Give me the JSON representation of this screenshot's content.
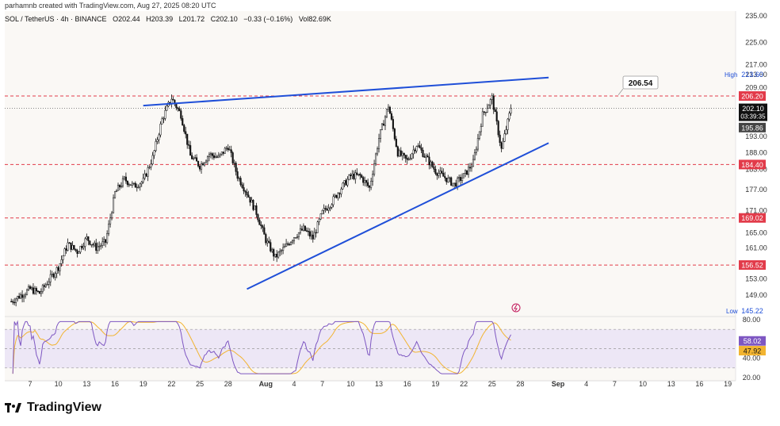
{
  "header": {
    "credit": "parhamnb created with TradingView.com, Aug 27, 2025 08:20 UTC",
    "symbol": "SOL / TetherUS · 4h · BINANCE",
    "open": "O202.44",
    "high": "H203.39",
    "low": "L201.72",
    "close": "C202.10",
    "change": "−0.33 (−0.16%)",
    "volume": "Vol82.69K"
  },
  "brand": {
    "name": "TradingView"
  },
  "colors": {
    "background": "#faf8f5",
    "candle": "#111111",
    "trendline": "#1f4fd8",
    "level_line": "#e23b4a",
    "rsi_line": "#7e57c2",
    "rsi_ma": "#f2b431",
    "rsi_band": "#ede7f6"
  },
  "chart_data": [
    {
      "type": "candlestick",
      "symbol": "SOL / TetherUS",
      "timeframe": "4h",
      "exchange": "BINANCE",
      "y_scale": "log",
      "ylim": [
        145.22,
        235.0
      ],
      "y_ticks": [
        235.0,
        225.0,
        217.0,
        213.6,
        209.0,
        201.0,
        193.0,
        188.0,
        183.0,
        177.0,
        171.0,
        165.0,
        161.0,
        153.0,
        149.0
      ],
      "x_tick_labels": [
        "7",
        "10",
        "13",
        "16",
        "19",
        "22",
        "25",
        "28",
        "Aug",
        "4",
        "7",
        "10",
        "13",
        "16",
        "19",
        "22",
        "25",
        "28",
        "Sep",
        "4",
        "7",
        "10",
        "13",
        "16",
        "19"
      ],
      "close_path": [
        {
          "d": "Jul 5",
          "c": 147.5
        },
        {
          "d": "Jul 7",
          "c": 150.5
        },
        {
          "d": "Jul 8",
          "c": 149.5
        },
        {
          "d": "Jul 10",
          "c": 156.0
        },
        {
          "d": "Jul 11",
          "c": 162.0
        },
        {
          "d": "Jul 12",
          "c": 160.0
        },
        {
          "d": "Jul 13",
          "c": 163.5
        },
        {
          "d": "Jul 14",
          "c": 161.0
        },
        {
          "d": "Jul 15",
          "c": 162.5
        },
        {
          "d": "Jul 16",
          "c": 176.0
        },
        {
          "d": "Jul 17",
          "c": 180.0
        },
        {
          "d": "Jul 18",
          "c": 178.0
        },
        {
          "d": "Jul 19",
          "c": 179.5
        },
        {
          "d": "Jul 20",
          "c": 186.5
        },
        {
          "d": "Jul 21",
          "c": 198.5
        },
        {
          "d": "Jul 22",
          "c": 205.5
        },
        {
          "d": "Jul 23",
          "c": 200.0
        },
        {
          "d": "Jul 24",
          "c": 187.0
        },
        {
          "d": "Jul 25",
          "c": 184.0
        },
        {
          "d": "Jul 26",
          "c": 187.5
        },
        {
          "d": "Jul 27",
          "c": 186.5
        },
        {
          "d": "Jul 28",
          "c": 190.0
        },
        {
          "d": "Jul 29",
          "c": 181.0
        },
        {
          "d": "Jul 30",
          "c": 176.0
        },
        {
          "d": "Jul 31",
          "c": 170.5
        },
        {
          "d": "Aug 1",
          "c": 163.0
        },
        {
          "d": "Aug 2",
          "c": 158.5
        },
        {
          "d": "Aug 3",
          "c": 161.0
        },
        {
          "d": "Aug 4",
          "c": 164.0
        },
        {
          "d": "Aug 5",
          "c": 166.0
        },
        {
          "d": "Aug 6",
          "c": 163.5
        },
        {
          "d": "Aug 7",
          "c": 170.5
        },
        {
          "d": "Aug 8",
          "c": 173.5
        },
        {
          "d": "Aug 9",
          "c": 177.5
        },
        {
          "d": "Aug 10",
          "c": 181.0
        },
        {
          "d": "Aug 11",
          "c": 181.0
        },
        {
          "d": "Aug 12",
          "c": 177.5
        },
        {
          "d": "Aug 13",
          "c": 192.5
        },
        {
          "d": "Aug 14",
          "c": 203.0
        },
        {
          "d": "Aug 15",
          "c": 188.0
        },
        {
          "d": "Aug 16",
          "c": 185.5
        },
        {
          "d": "Aug 17",
          "c": 190.5
        },
        {
          "d": "Aug 18",
          "c": 186.5
        },
        {
          "d": "Aug 19",
          "c": 182.5
        },
        {
          "d": "Aug 20",
          "c": 180.5
        },
        {
          "d": "Aug 21",
          "c": 178.5
        },
        {
          "d": "Aug 22",
          "c": 181.0
        },
        {
          "d": "Aug 23",
          "c": 185.0
        },
        {
          "d": "Aug 24",
          "c": 200.0
        },
        {
          "d": "Aug 25",
          "c": 205.5
        },
        {
          "d": "Aug 26",
          "c": 189.0
        },
        {
          "d": "Aug 27",
          "c": 202.1
        }
      ],
      "candles_per_day": 6,
      "horizontal_levels": [
        {
          "label": "206.20",
          "price": 206.2
        },
        {
          "label": "184.40",
          "price": 184.4
        },
        {
          "label": "169.02",
          "price": 169.02
        },
        {
          "label": "156.52",
          "price": 156.52
        }
      ],
      "price_labels": {
        "high_label": "High",
        "high": "213.60",
        "low_label": "Low",
        "low": "145.22",
        "last": "202.10",
        "countdown": "03:39:35",
        "prev": "195.86",
        "callout": "206.54"
      },
      "trendlines": [
        {
          "name": "upper",
          "from": {
            "d": "Jul 19",
            "price": 203.0
          },
          "to": {
            "d": "Aug 31",
            "price": 212.5
          }
        },
        {
          "name": "lower",
          "from": {
            "d": "Jul 30",
            "price": 150.5
          },
          "to": {
            "d": "Aug 31",
            "price": 191.0
          }
        }
      ]
    },
    {
      "type": "line",
      "title": "",
      "ylim": [
        20,
        80
      ],
      "y_ticks": [
        80.0,
        60.0,
        40.0,
        20.0
      ],
      "band": [
        30,
        70
      ],
      "values_labels": {
        "rsi": "58.02",
        "ma": "47.92"
      }
    }
  ]
}
